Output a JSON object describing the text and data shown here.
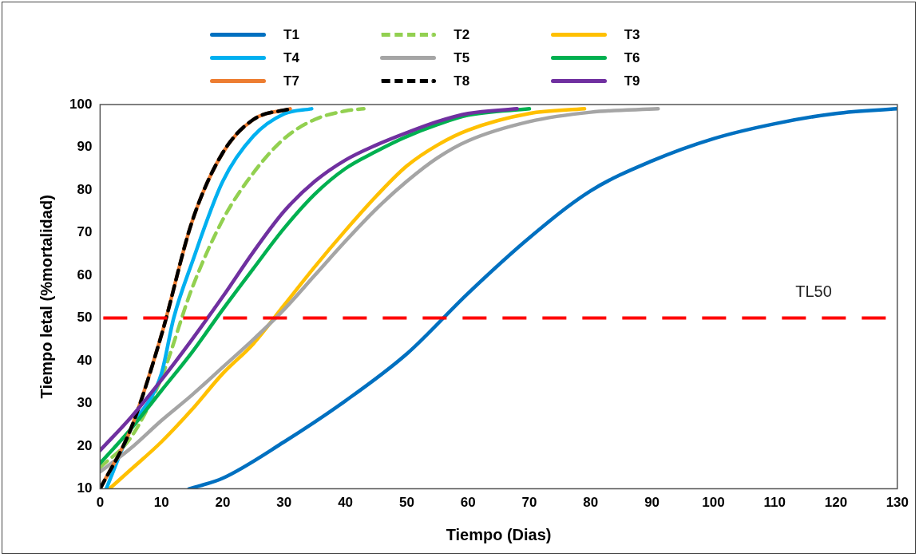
{
  "chart_data": {
    "type": "line",
    "xlabel": "Tiempo (Dias)",
    "ylabel": "Tiempo letal (%mortalidad)",
    "xlim": [
      0,
      130
    ],
    "xticks": [
      0,
      10,
      20,
      30,
      40,
      50,
      60,
      70,
      80,
      90,
      100,
      110,
      120,
      130
    ],
    "ylim": [
      10,
      100
    ],
    "yticks": [
      10,
      20,
      30,
      40,
      50,
      60,
      70,
      80,
      90,
      100
    ],
    "grid": false,
    "legend": "top",
    "marker": "none",
    "ref_lines": [
      {
        "axis": "y",
        "value": 50,
        "label": "TL50",
        "color": "#ff0000",
        "line_style": "dashed"
      }
    ],
    "series": [
      {
        "name": "T1",
        "color": "#0070c0",
        "line_style": "solid",
        "x": [
          14.5,
          20,
          30,
          40,
          50,
          60,
          70,
          80,
          90,
          100,
          110,
          120,
          130
        ],
        "values": [
          10,
          12.5,
          21,
          30.6,
          41.6,
          55.8,
          68.8,
          79.8,
          86.8,
          92,
          95.5,
          97.9,
          99
        ]
      },
      {
        "name": "T2",
        "color": "#92d050",
        "line_style": "dashed",
        "x": [
          0,
          5,
          10,
          15,
          20,
          25,
          30,
          35,
          40,
          43
        ],
        "values": [
          15,
          22,
          36,
          57,
          73,
          84,
          92,
          96.5,
          98.5,
          99
        ]
      },
      {
        "name": "T3",
        "color": "#ffc000",
        "line_style": "solid",
        "x": [
          1.5,
          5,
          10,
          15,
          20,
          25,
          30,
          35,
          40,
          45,
          50,
          55,
          60,
          70,
          79
        ],
        "values": [
          10,
          14.5,
          21,
          28.6,
          37,
          44,
          53,
          62,
          70.5,
          78.5,
          85.6,
          90.5,
          94,
          97.9,
          99
        ]
      },
      {
        "name": "T4",
        "color": "#00b0f0",
        "line_style": "solid",
        "x": [
          1,
          5,
          10,
          12,
          15,
          20,
          25,
          30,
          34.5
        ],
        "values": [
          10,
          24,
          37,
          50,
          63,
          82,
          92.6,
          97.8,
          99
        ]
      },
      {
        "name": "T5",
        "color": "#a5a5a5",
        "line_style": "solid",
        "x": [
          0,
          5,
          10,
          15,
          20,
          25,
          30,
          35,
          40,
          45,
          50,
          55,
          60,
          70,
          80,
          91
        ],
        "values": [
          14,
          19.5,
          26,
          32,
          38.5,
          45,
          52,
          60,
          68,
          75.5,
          82,
          87.5,
          91.5,
          96,
          98.2,
          99
        ]
      },
      {
        "name": "T6",
        "color": "#00b050",
        "line_style": "solid",
        "x": [
          0,
          5,
          10,
          15,
          20,
          25,
          30,
          35,
          40,
          45,
          50,
          55,
          60,
          70
        ],
        "values": [
          16,
          24,
          33,
          42,
          52,
          61.6,
          71,
          79,
          85,
          89,
          92.5,
          95.3,
          97.5,
          99
        ]
      },
      {
        "name": "T7",
        "color": "#ed7d31",
        "line_style": "solid",
        "x": [
          0,
          5,
          10,
          15,
          20,
          25,
          31
        ],
        "values": [
          10,
          24,
          46,
          72.6,
          88.7,
          96.5,
          99
        ]
      },
      {
        "name": "T8",
        "color": "#000000",
        "line_style": "dashed",
        "x": [
          0,
          5,
          10,
          15,
          20,
          25,
          31
        ],
        "values": [
          10,
          24,
          46,
          72.6,
          88.7,
          96.5,
          99
        ]
      },
      {
        "name": "T9",
        "color": "#7030a0",
        "line_style": "solid",
        "x": [
          0,
          5,
          10,
          15,
          20,
          25,
          30,
          35,
          40,
          45,
          50,
          55,
          60,
          68
        ],
        "values": [
          19,
          26.7,
          35.5,
          45,
          55,
          65.5,
          75,
          82,
          87,
          90.5,
          93.4,
          96,
          97.9,
          99
        ]
      }
    ]
  }
}
